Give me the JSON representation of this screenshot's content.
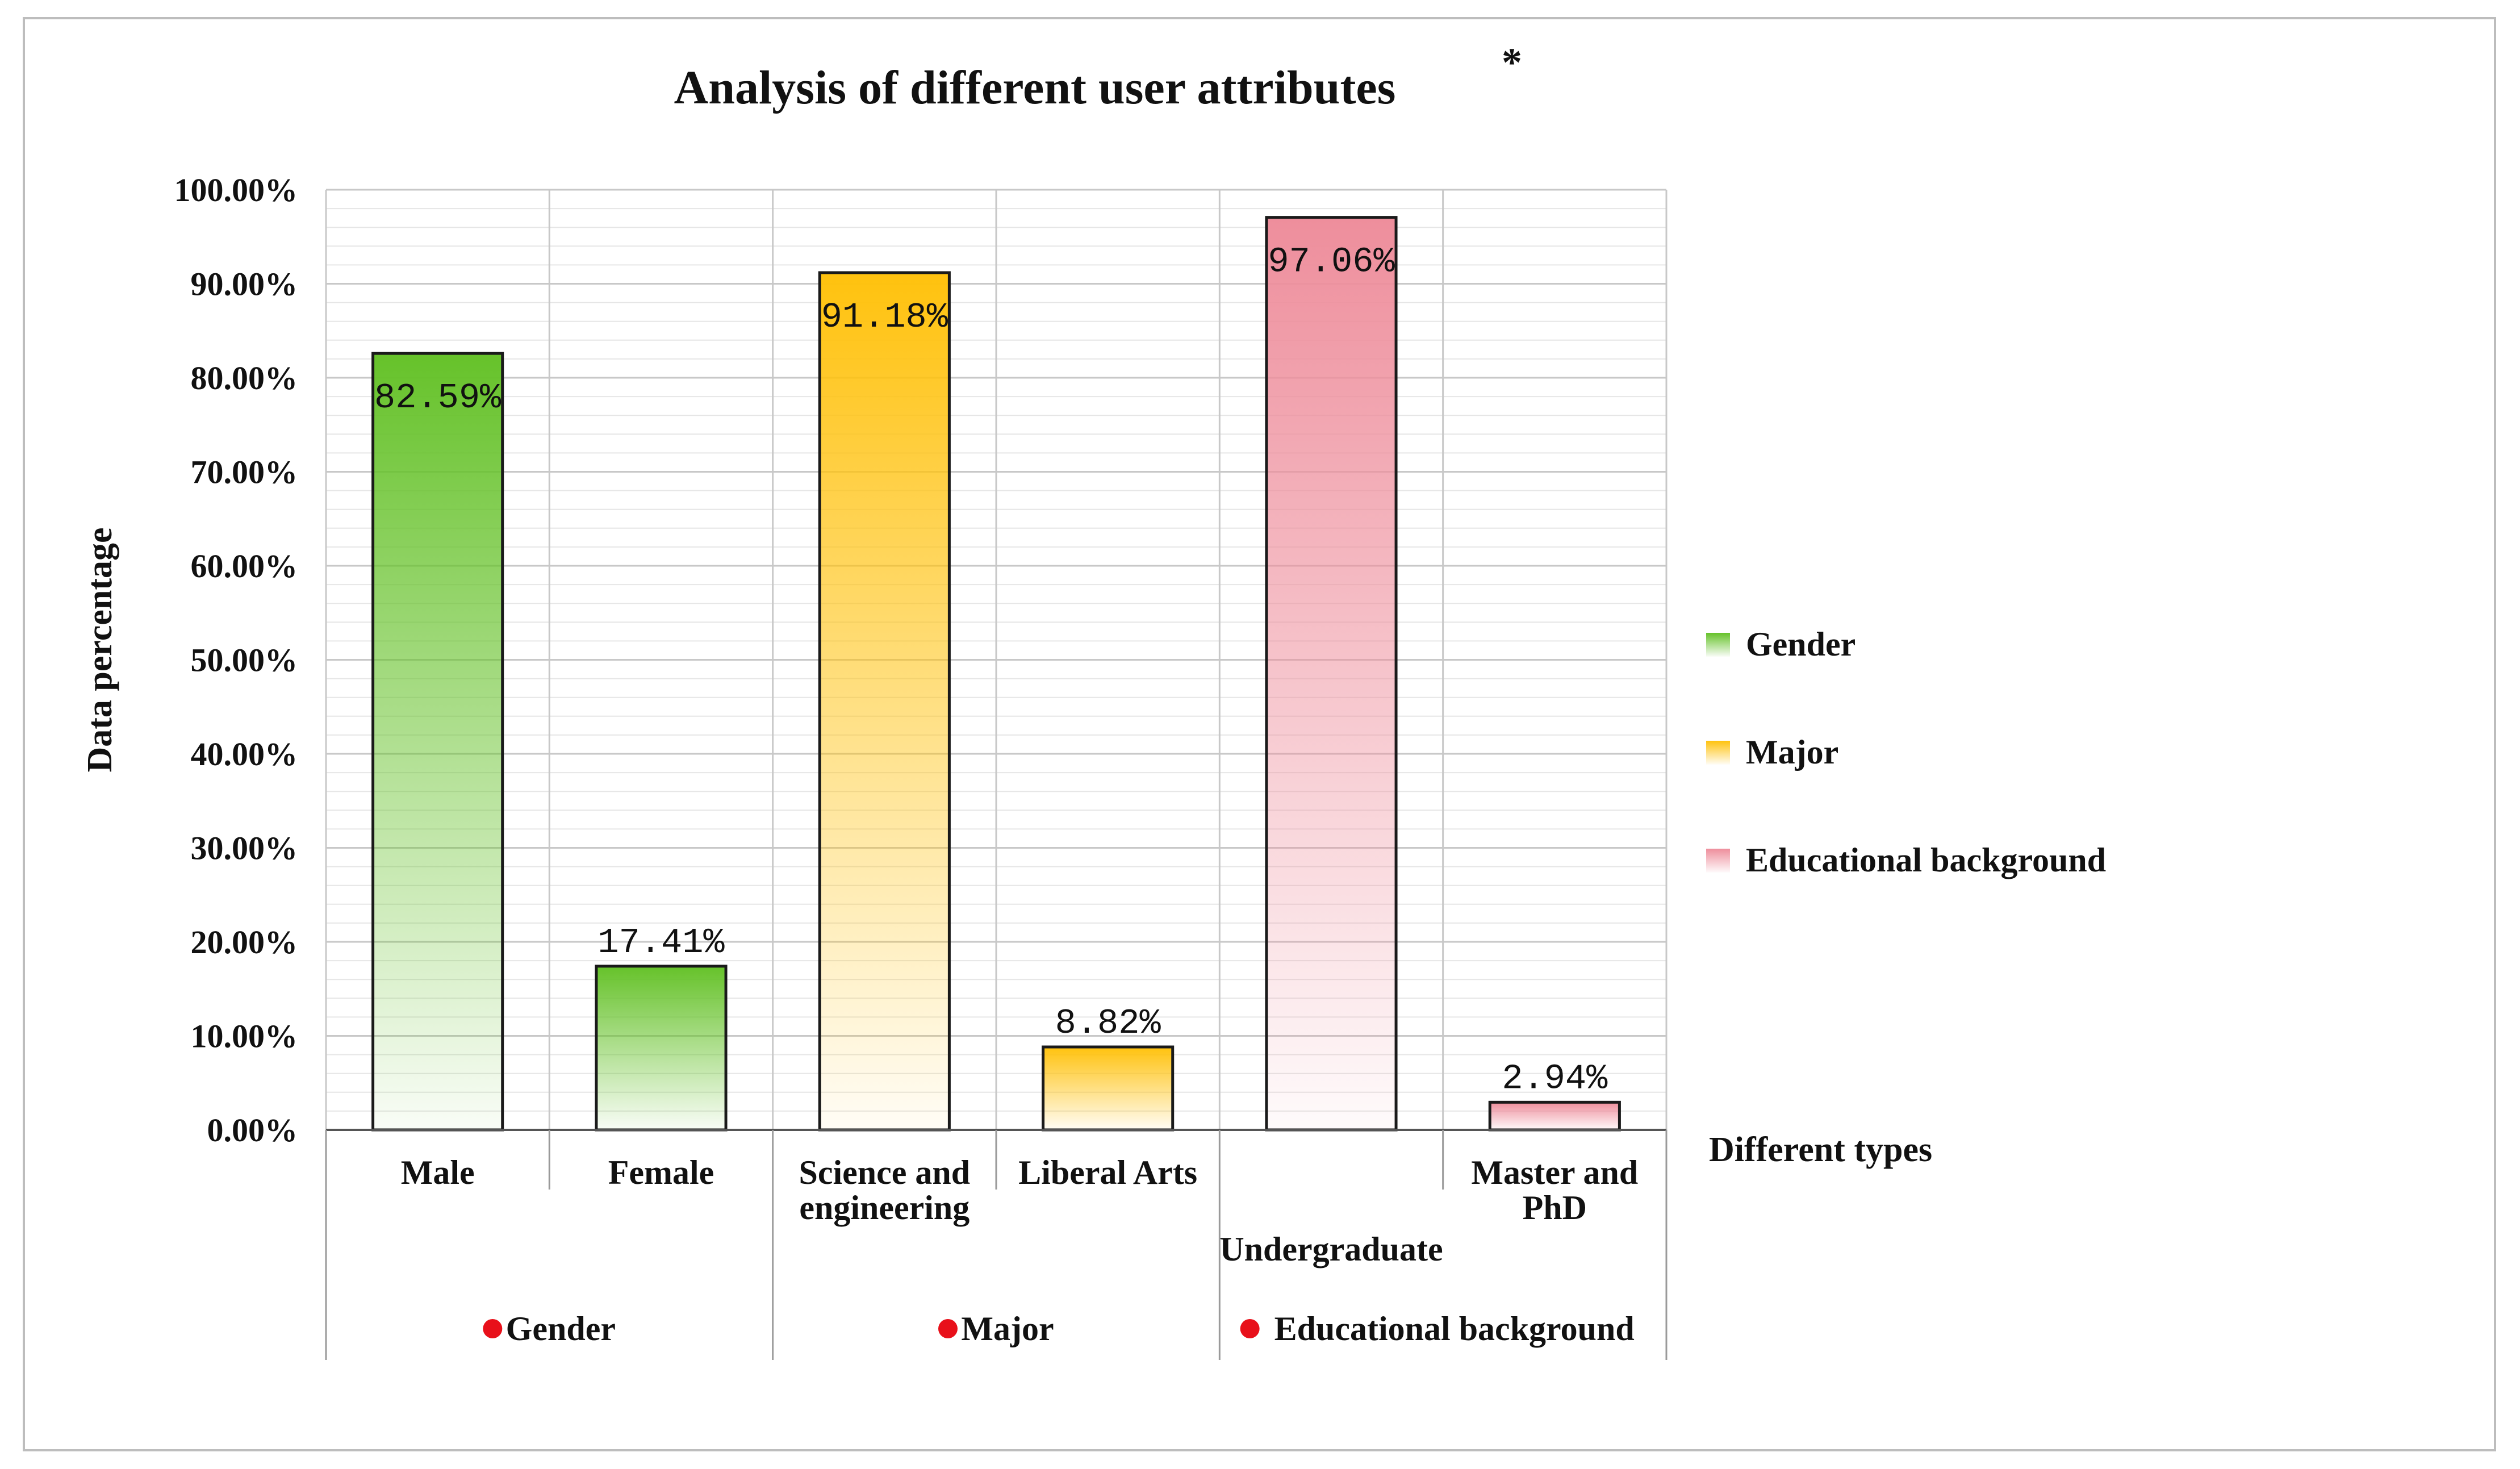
{
  "chart_data": {
    "type": "bar",
    "title": "Analysis of different user attributes",
    "title_marker": "*",
    "ylabel": "Data percentage",
    "xlabel": "Different types",
    "ylim": [
      0,
      100
    ],
    "yticks": [
      "0.00%",
      "10.00%",
      "20.00%",
      "30.00%",
      "40.00%",
      "50.00%",
      "60.00%",
      "70.00%",
      "80.00%",
      "90.00%",
      "100.00%"
    ],
    "grid": true,
    "legend_position": "right",
    "categories": [
      {
        "label_lines": [
          "Male"
        ],
        "group": "Gender",
        "value": 82.59,
        "value_label": "82.59%"
      },
      {
        "label_lines": [
          "Female"
        ],
        "group": "Gender",
        "value": 17.41,
        "value_label": "17.41%"
      },
      {
        "label_lines": [
          "Science and",
          "engineering"
        ],
        "group": "Major",
        "value": 91.18,
        "value_label": "91.18%"
      },
      {
        "label_lines": [
          "Liberal Arts"
        ],
        "group": "Major",
        "value": 8.82,
        "value_label": "8.82%"
      },
      {
        "label_lines": [
          "Undergraduate"
        ],
        "group": "Educational background",
        "value": 97.06,
        "value_label": "97.06%"
      },
      {
        "label_lines": [
          "Master and",
          "PhD"
        ],
        "group": "Educational background",
        "value": 2.94,
        "value_label": "2.94%"
      }
    ],
    "groups": [
      {
        "name": "Gender",
        "color": "#66c22a"
      },
      {
        "name": "Major",
        "color": "#ffc20e"
      },
      {
        "name": "Educational background",
        "color": "#ee8e9c"
      }
    ],
    "group_marker_color": "#e8101a"
  }
}
